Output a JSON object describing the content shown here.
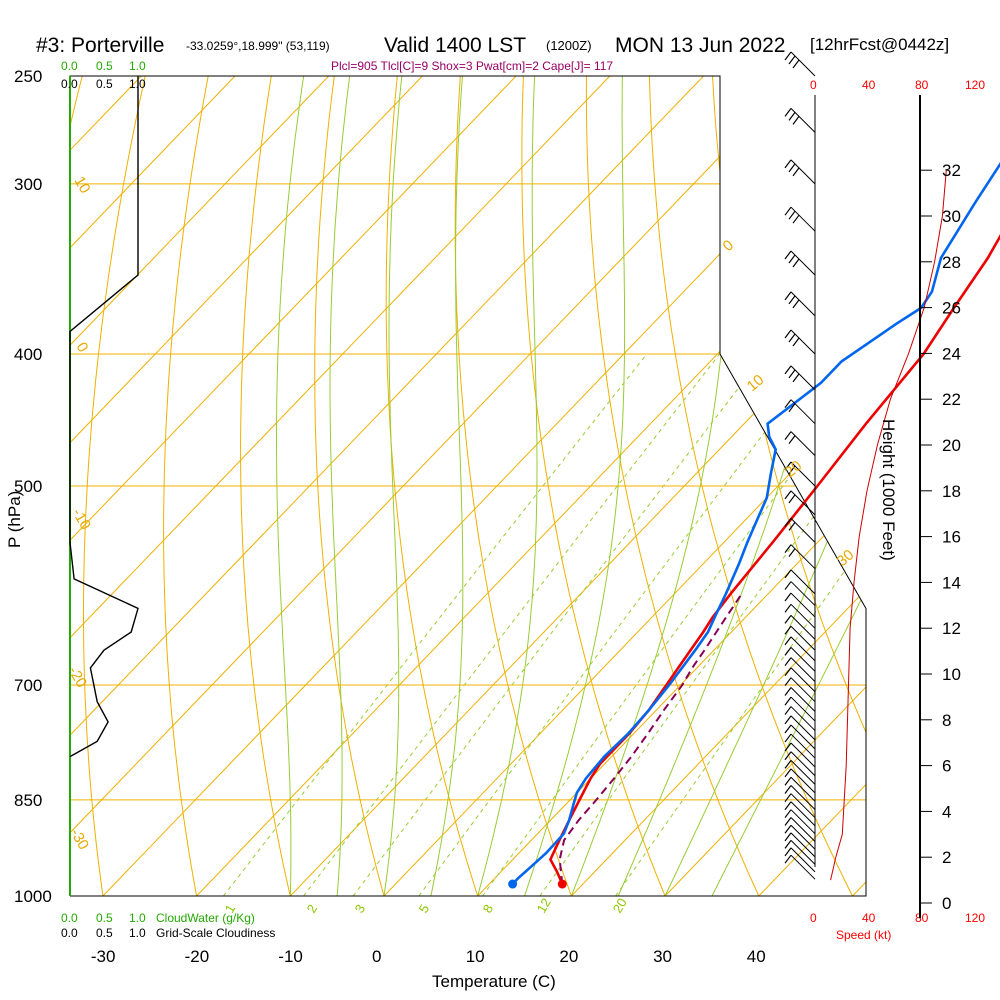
{
  "header": {
    "station": "#3: Porterville",
    "coords": "-33.0259°,18.999\" (53,119)",
    "valid": "Valid 1400 LST",
    "zulu": "(1200Z)",
    "date": "MON 13 Jun 2022",
    "forecast": "[12hrFcst@0442z]",
    "indices": "Plcl=905 Tlcl[C]=9 Shox=3 Pwat[cm]=2 Cape[J]= 117"
  },
  "colors": {
    "temperature": "#ee0000",
    "dewpoint": "#0066ee",
    "parcel": "#880055",
    "isotherm": "#f0b000",
    "dry_adiabat": "#f0b000",
    "moist_adiabat": "#99cc33",
    "mixing_ratio": "#99cc33",
    "cloudwater": "#22aa00",
    "wind_speed": "#cc0000"
  },
  "chart_data": {
    "type": "line",
    "title": "#3: Porterville",
    "xlabel": "Temperature (C)",
    "ylabel": "P (hPa)",
    "right_ylabel": "Height (1000 Feet)",
    "x_ticks": [
      "-30",
      "-20",
      "-10",
      "0",
      "10",
      "20",
      "30",
      "40"
    ],
    "y_ticks": [
      "250",
      "300",
      "400",
      "500",
      "700",
      "850",
      "1000"
    ],
    "height_ticks": [
      "0",
      "2",
      "4",
      "6",
      "8",
      "10",
      "12",
      "14",
      "16",
      "18",
      "20",
      "22",
      "24",
      "26",
      "28",
      "30",
      "32"
    ],
    "speed_ticks": [
      "0",
      "40",
      "80",
      "120"
    ],
    "speed_label": "Speed (kt)",
    "cloud_ticks": [
      "0.0",
      "0.5",
      "1.0"
    ],
    "cloudwater_label": "CloudWater (g/Kg)",
    "cloudiness_label": "Grid-Scale Cloudiness",
    "isotherm_labels": [
      "10",
      "0",
      "-10",
      "-20",
      "-30"
    ],
    "dry_adiabat_labels": [
      "0",
      "10",
      "20",
      "30"
    ],
    "mixing_labels": [
      "1",
      "2",
      "3",
      "5",
      "8",
      "12",
      "20"
    ],
    "series": [
      {
        "name": "Temperature",
        "points": [
          [
            17.8,
            980
          ],
          [
            16,
            960
          ],
          [
            14,
            940
          ],
          [
            13,
            910
          ],
          [
            12,
            880
          ],
          [
            11,
            850
          ],
          [
            10,
            820
          ],
          [
            9.5,
            800
          ],
          [
            9.5,
            760
          ],
          [
            9.2,
            730
          ],
          [
            8.5,
            700
          ],
          [
            8,
            680
          ],
          [
            7.5,
            660
          ],
          [
            7,
            640
          ],
          [
            6.5,
            625
          ],
          [
            6,
            600
          ],
          [
            5.2,
            550
          ],
          [
            4.2,
            500
          ],
          [
            3.0,
            450
          ],
          [
            2.0,
            400
          ],
          [
            0.5,
            370
          ],
          [
            -1,
            340
          ],
          [
            -2.5,
            320
          ],
          [
            -4,
            300
          ],
          [
            -5,
            285
          ],
          [
            -6,
            270
          ],
          [
            -7,
            255
          ]
        ]
      },
      {
        "name": "Dewpoint",
        "points": [
          [
            12.5,
            980
          ],
          [
            12.5,
            970
          ],
          [
            12.7,
            950
          ],
          [
            12.9,
            930
          ],
          [
            12.8,
            900
          ],
          [
            12,
            880
          ],
          [
            11,
            860
          ],
          [
            10,
            840
          ],
          [
            9.5,
            820
          ],
          [
            9.2,
            790
          ],
          [
            9.4,
            760
          ],
          [
            9.2,
            730
          ],
          [
            8.8,
            700
          ],
          [
            8,
            660
          ],
          [
            7.5,
            640
          ],
          [
            6.5,
            620
          ],
          [
            5.5,
            600
          ],
          [
            3.8,
            570
          ],
          [
            2.5,
            550
          ],
          [
            0,
            510
          ],
          [
            -2,
            490
          ],
          [
            -4,
            470
          ],
          [
            -6,
            460
          ],
          [
            -7.5,
            450
          ],
          [
            -6,
            420
          ],
          [
            -6,
            405
          ],
          [
            -4,
            380
          ],
          [
            -3,
            370
          ],
          [
            -3.5,
            360
          ],
          [
            -6,
            340
          ],
          [
            -8,
            310
          ],
          [
            -10,
            280
          ],
          [
            -11,
            258
          ]
        ]
      },
      {
        "name": "Parcel",
        "dashed": true,
        "points": [
          [
            17.8,
            980
          ],
          [
            15,
            940
          ],
          [
            13.5,
            910
          ],
          [
            13,
            880
          ],
          [
            12.8,
            850
          ],
          [
            12.5,
            820
          ],
          [
            12.1,
            790
          ],
          [
            11.5,
            760
          ],
          [
            10.8,
            730
          ],
          [
            10.2,
            700
          ],
          [
            9.5,
            680
          ],
          [
            9,
            660
          ],
          [
            8.4,
            640
          ],
          [
            7.8,
            620
          ],
          [
            7.2,
            600
          ]
        ]
      }
    ],
    "surface_points": {
      "temperature": [
        17.8,
        980
      ],
      "dewpoint": [
        12.5,
        980
      ]
    },
    "wind_speed_kt": [
      [
        12,
        1
      ],
      [
        16,
        2
      ],
      [
        21,
        3
      ],
      [
        22,
        4
      ],
      [
        24,
        6
      ],
      [
        25,
        8
      ],
      [
        26,
        10
      ],
      [
        27,
        12
      ],
      [
        30,
        14
      ],
      [
        34,
        16
      ],
      [
        40,
        18
      ],
      [
        48,
        20
      ],
      [
        58,
        22
      ],
      [
        72,
        24
      ],
      [
        84,
        26
      ],
      [
        92,
        28
      ],
      [
        98,
        30
      ],
      [
        101,
        32
      ]
    ],
    "cloud_fraction": [
      [
        0.5,
        250
      ],
      [
        0.5,
        350
      ],
      [
        0.0,
        385
      ],
      [
        0.0,
        550
      ],
      [
        0.03,
        585
      ],
      [
        0.5,
        615
      ],
      [
        0.45,
        640
      ],
      [
        0.25,
        660
      ],
      [
        0.15,
        680
      ],
      [
        0.2,
        720
      ],
      [
        0.28,
        745
      ],
      [
        0.2,
        770
      ],
      [
        0.0,
        790
      ]
    ],
    "xlim": [
      -30,
      40
    ],
    "ylim": [
      1000,
      250
    ]
  }
}
